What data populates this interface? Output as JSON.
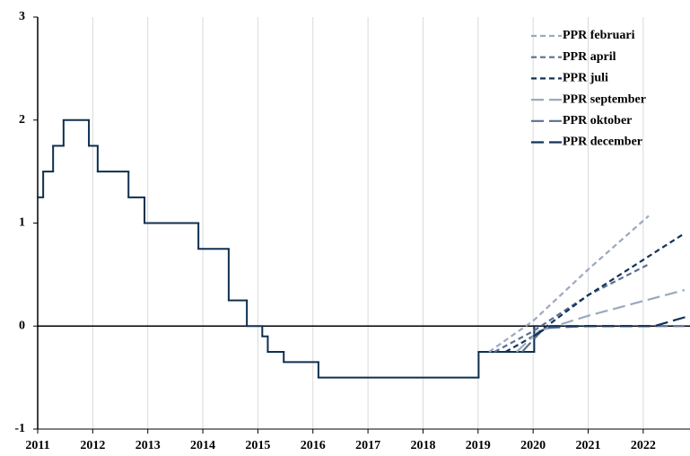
{
  "chart_data": {
    "type": "line",
    "xlim": [
      2011,
      2022.85
    ],
    "xticks": [
      2011,
      2012,
      2013,
      2014,
      2015,
      2016,
      2017,
      2018,
      2019,
      2020,
      2021,
      2022
    ],
    "ylim": [
      -1,
      3
    ],
    "yticks": [
      -1,
      0,
      1,
      2,
      3
    ],
    "grid": "x",
    "legend": "top-right",
    "history": {
      "step": true,
      "color": "#0e2f4f",
      "x": [
        2011.0,
        2011.1,
        2011.28,
        2011.47,
        2011.93,
        2012.09,
        2012.65,
        2012.94,
        2013.92,
        2014.47,
        2014.8,
        2015.08,
        2015.18,
        2015.47,
        2016.1,
        2019.01,
        2020.02
      ],
      "values": [
        1.25,
        1.5,
        1.75,
        2.0,
        1.75,
        1.5,
        1.25,
        1.0,
        0.75,
        0.25,
        0,
        -0.1,
        -0.25,
        -0.35,
        -0.5,
        -0.25,
        0
      ]
    },
    "series": [
      {
        "name": "PPR februari",
        "color": "#9ba9bf",
        "dash": "6 4",
        "x": [
          2019.2,
          2020.0,
          2021.0,
          2022.1
        ],
        "values": [
          -0.25,
          0.05,
          0.55,
          1.07
        ]
      },
      {
        "name": "PPR april",
        "color": "#5b6f91",
        "dash": "6 4",
        "x": [
          2019.3,
          2020.0,
          2021.0,
          2022.1
        ],
        "values": [
          -0.25,
          -0.05,
          0.3,
          0.6
        ]
      },
      {
        "name": "PPR juli",
        "color": "#12335a",
        "dash": "6 4",
        "x": [
          2019.5,
          2020.0,
          2021.0,
          2022.75
        ],
        "values": [
          -0.25,
          -0.1,
          0.3,
          0.9
        ]
      },
      {
        "name": "PPR september",
        "color": "#9ba9bf",
        "dash": "14 6",
        "x": [
          2019.7,
          2020.1,
          2021.0,
          2022.75
        ],
        "values": [
          -0.25,
          -0.05,
          0.1,
          0.35
        ]
      },
      {
        "name": "PPR oktober",
        "color": "#5b6f91",
        "dash": "14 6",
        "x": [
          2019.8,
          2020.2,
          2021.0,
          2022.75
        ],
        "values": [
          -0.25,
          -0.02,
          0,
          0
        ]
      },
      {
        "name": "PPR december",
        "color": "#12335a",
        "dash": "14 6",
        "x": [
          2020.0,
          2020.3,
          2022.2,
          2022.85
        ],
        "values": [
          -0.1,
          0,
          0,
          0.1
        ]
      }
    ]
  }
}
